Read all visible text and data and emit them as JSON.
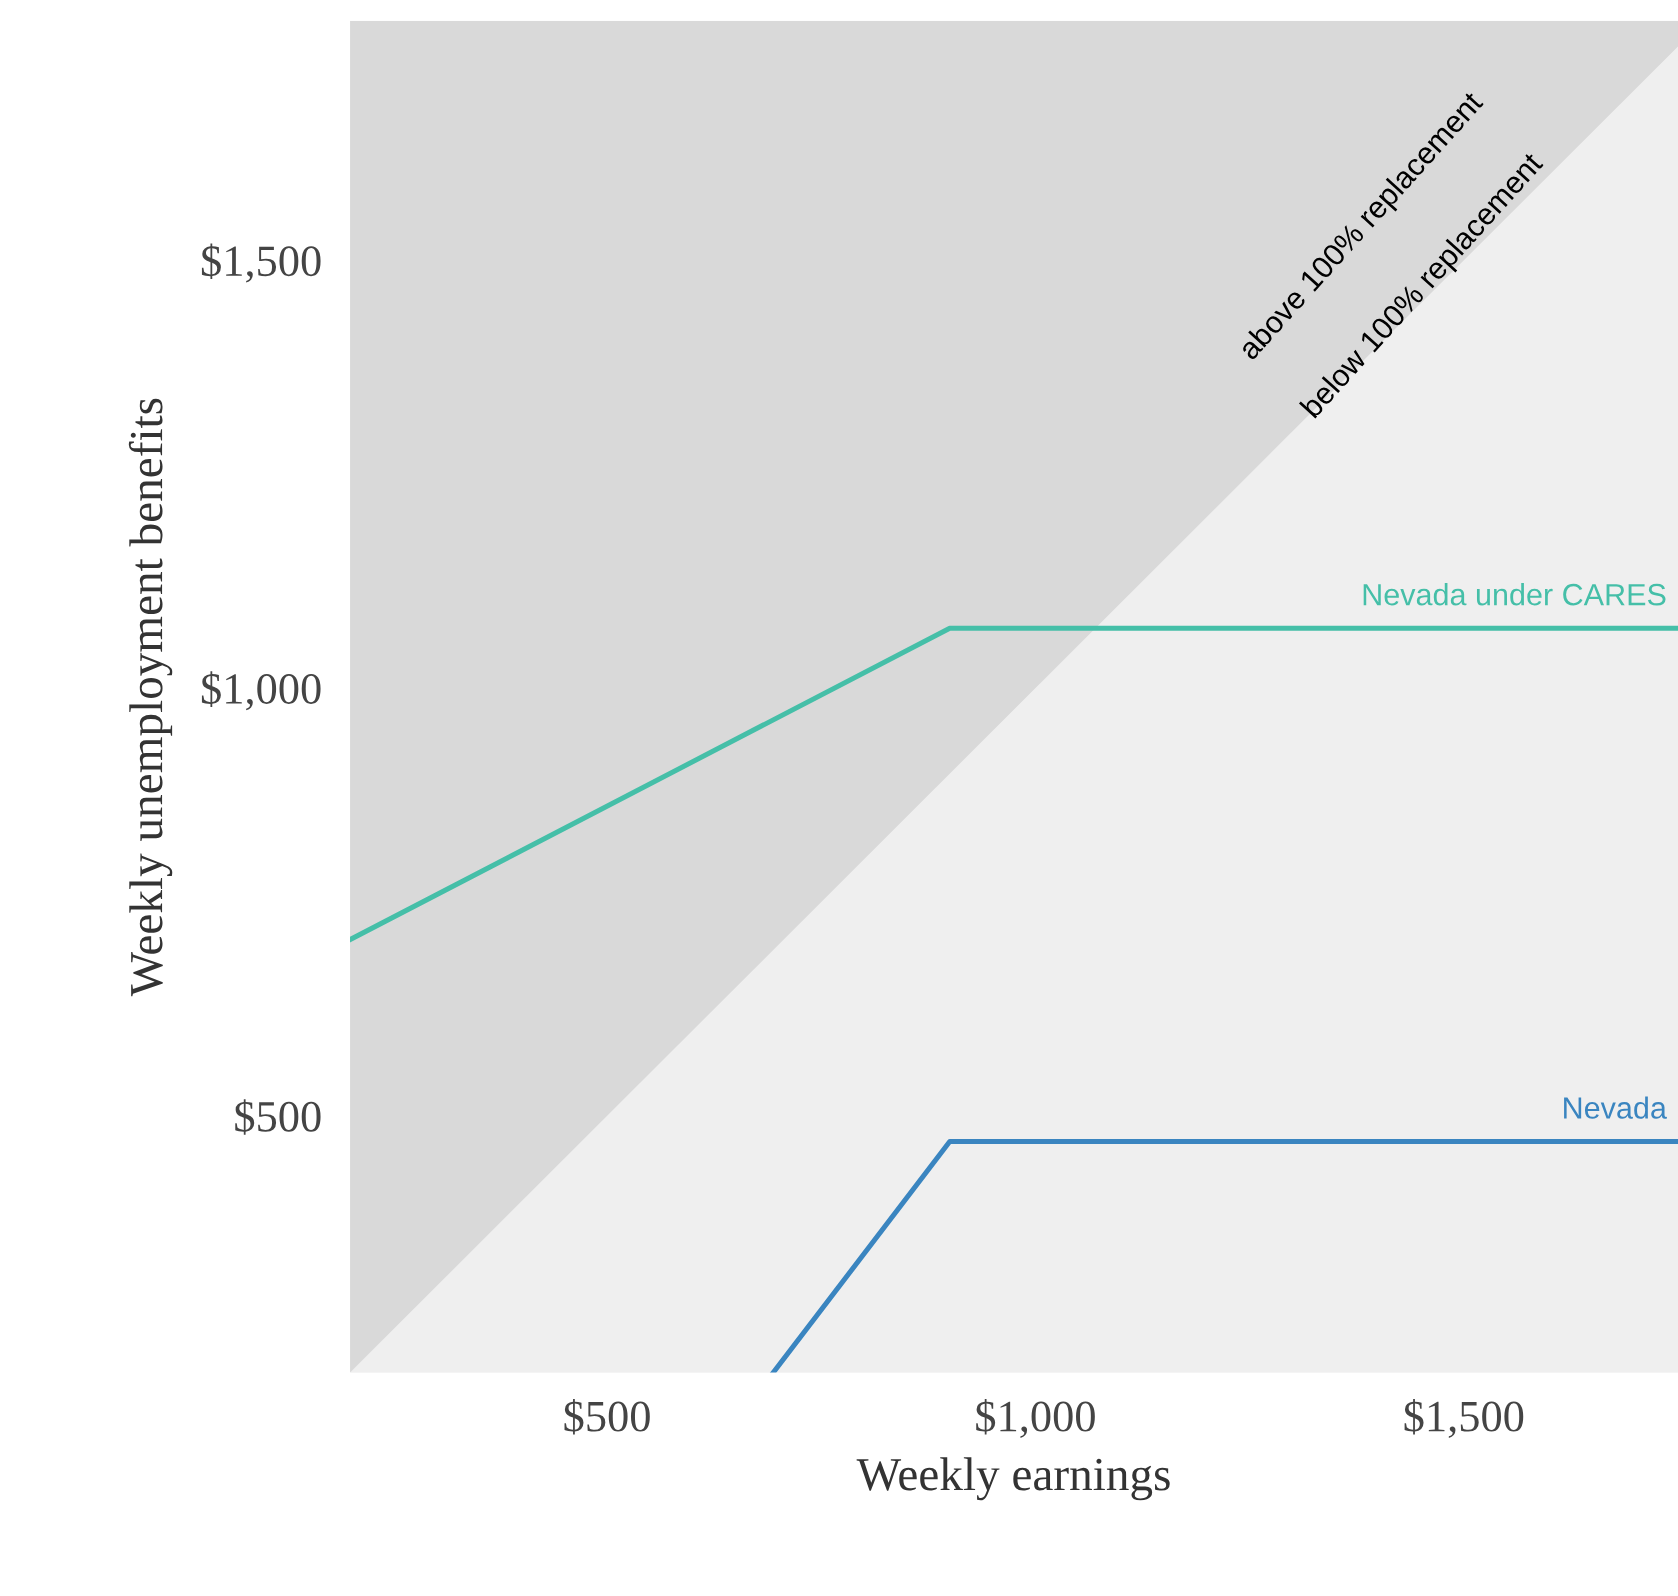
{
  "chart_data": {
    "type": "line",
    "xlabel": "Weekly earnings",
    "ylabel": "Weekly unemployment benefits",
    "xlim": [
      200,
      1750
    ],
    "ylim": [
      200,
      1780
    ],
    "xticks": [
      {
        "value": 500,
        "label": "$500"
      },
      {
        "value": 1000,
        "label": "$1,000"
      },
      {
        "value": 1500,
        "label": "$1,500"
      }
    ],
    "yticks": [
      {
        "value": 500,
        "label": "$500"
      },
      {
        "value": 1000,
        "label": "$1,000"
      },
      {
        "value": 1500,
        "label": "$1,500"
      }
    ],
    "grid": false,
    "legend": false,
    "bands": [
      {
        "axis": "x",
        "from": 200,
        "to": 1750,
        "color": "#d9d9d9"
      }
    ],
    "series": [
      {
        "type": "area",
        "color": "#efefef",
        "x": [
          200,
          1750
        ],
        "values": [
          200,
          1750
        ]
      },
      {
        "name": "Nevada under CARES",
        "color": "#45bfa8",
        "x": [
          200,
          900,
          1750
        ],
        "values": [
          706,
          1070,
          1070
        ]
      },
      {
        "name": "Nevada",
        "color": "#3a85c0",
        "x": [
          694,
          900,
          1750
        ],
        "values": [
          200,
          470,
          470
        ]
      }
    ],
    "annotations": [
      "above 100% replacement",
      "below 100% replacement"
    ]
  }
}
